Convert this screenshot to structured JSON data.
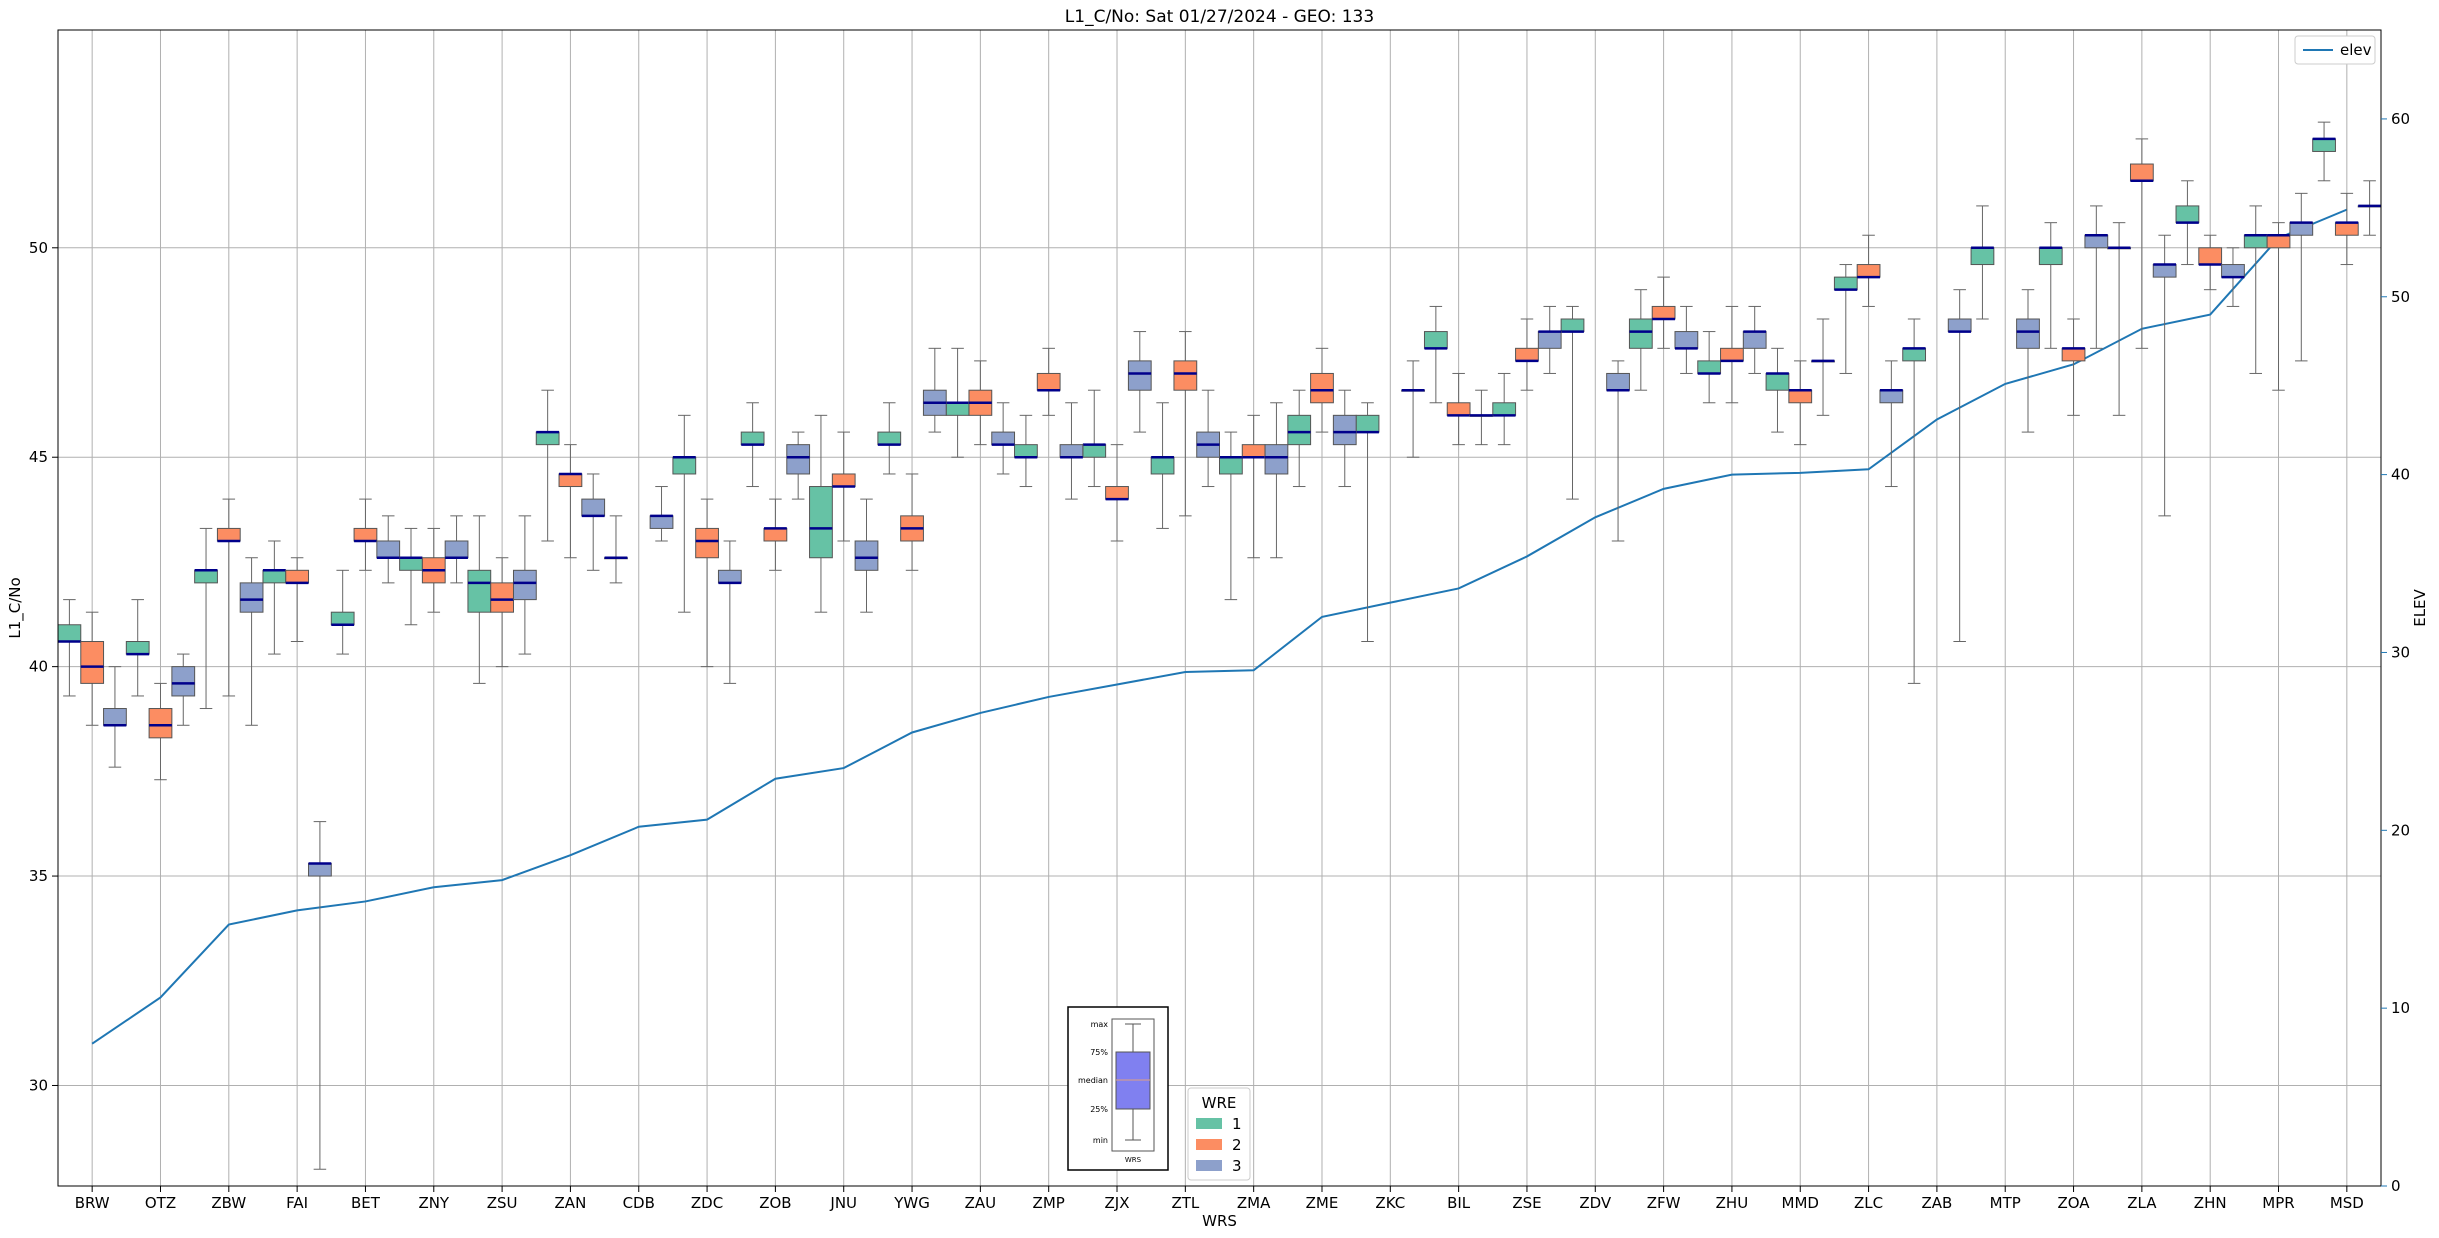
{
  "chart_data": {
    "type": "box",
    "title": "L1_C/No: Sat 01/27/2024 - GEO: 133",
    "xlabel": "WRS",
    "ylabel": "L1_C/No",
    "y2label": "ELEV",
    "ylim": [
      27.6,
      55.2
    ],
    "y2lim": [
      0,
      65
    ],
    "yticks": [
      30,
      35,
      40,
      45,
      50
    ],
    "y2ticks": [
      0,
      10,
      20,
      30,
      40,
      50,
      60
    ],
    "grid": true,
    "categories": [
      "BRW",
      "OTZ",
      "ZBW",
      "FAI",
      "BET",
      "ZNY",
      "ZSU",
      "ZAN",
      "CDB",
      "ZDC",
      "ZOB",
      "JNU",
      "YWG",
      "ZAU",
      "ZMP",
      "ZJX",
      "ZTL",
      "ZMA",
      "ZME",
      "ZKC",
      "BIL",
      "ZSE",
      "ZDV",
      "ZFW",
      "ZHU",
      "MMD",
      "ZLC",
      "ZAB",
      "MTP",
      "ZOA",
      "ZLA",
      "ZHN",
      "MPR",
      "MSD"
    ],
    "series": [
      {
        "name": "1",
        "color": "#66c2a5",
        "boxes": [
          {
            "min": 39.3,
            "q1": 40.6,
            "median": 40.6,
            "q3": 41.0,
            "max": 41.6
          },
          {
            "min": 39.3,
            "q1": 40.3,
            "median": 40.3,
            "q3": 40.6,
            "max": 41.6
          },
          {
            "min": 39.0,
            "q1": 42.0,
            "median": 42.3,
            "q3": 42.3,
            "max": 43.3
          },
          {
            "min": 40.3,
            "q1": 42.0,
            "median": 42.3,
            "q3": 42.3,
            "max": 43.0
          },
          {
            "min": 40.3,
            "q1": 41.0,
            "median": 41.0,
            "q3": 41.3,
            "max": 42.3
          },
          {
            "min": 41.0,
            "q1": 42.3,
            "median": 42.6,
            "q3": 42.6,
            "max": 43.3
          },
          {
            "min": 39.6,
            "q1": 41.3,
            "median": 42.0,
            "q3": 42.3,
            "max": 43.6
          },
          {
            "min": 43.0,
            "q1": 45.3,
            "median": 45.6,
            "q3": 45.6,
            "max": 46.6
          },
          {
            "min": 42.0,
            "q1": 42.6,
            "median": 42.6,
            "q3": 42.6,
            "max": 43.6
          },
          {
            "min": 41.3,
            "q1": 44.6,
            "median": 45.0,
            "q3": 45.0,
            "max": 46.0
          },
          {
            "min": 44.3,
            "q1": 45.3,
            "median": 45.3,
            "q3": 45.6,
            "max": 46.3
          },
          {
            "min": 41.3,
            "q1": 42.6,
            "median": 43.3,
            "q3": 44.3,
            "max": 46.0
          },
          {
            "min": 44.6,
            "q1": 45.3,
            "median": 45.3,
            "q3": 45.6,
            "max": 46.3
          },
          {
            "min": 45.0,
            "q1": 46.0,
            "median": 46.3,
            "q3": 46.3,
            "max": 47.6
          },
          {
            "min": 44.3,
            "q1": 45.0,
            "median": 45.0,
            "q3": 45.3,
            "max": 46.0
          },
          {
            "min": 44.3,
            "q1": 45.0,
            "median": 45.3,
            "q3": 45.3,
            "max": 46.6
          },
          {
            "min": 43.3,
            "q1": 44.6,
            "median": 45.0,
            "q3": 45.0,
            "max": 46.3
          },
          {
            "min": 41.6,
            "q1": 44.6,
            "median": 45.0,
            "q3": 45.0,
            "max": 45.6
          },
          {
            "min": 44.3,
            "q1": 45.3,
            "median": 45.6,
            "q3": 46.0,
            "max": 46.6
          },
          {
            "min": 40.6,
            "q1": 45.6,
            "median": 45.6,
            "q3": 46.0,
            "max": 46.3
          },
          {
            "min": 46.3,
            "q1": 47.6,
            "median": 47.6,
            "q3": 48.0,
            "max": 48.6
          },
          {
            "min": 45.3,
            "q1": 46.0,
            "median": 46.0,
            "q3": 46.3,
            "max": 47.0
          },
          {
            "min": 44.0,
            "q1": 48.0,
            "median": 48.0,
            "q3": 48.3,
            "max": 48.6
          },
          {
            "min": 46.6,
            "q1": 47.6,
            "median": 48.0,
            "q3": 48.3,
            "max": 49.0
          },
          {
            "min": 46.3,
            "q1": 47.0,
            "median": 47.0,
            "q3": 47.3,
            "max": 48.0
          },
          {
            "min": 45.6,
            "q1": 46.6,
            "median": 47.0,
            "q3": 47.0,
            "max": 47.6
          },
          {
            "min": 47.0,
            "q1": 49.0,
            "median": 49.0,
            "q3": 49.3,
            "max": 49.6
          },
          {
            "min": 39.6,
            "q1": 47.3,
            "median": 47.6,
            "q3": 47.6,
            "max": 48.3
          },
          {
            "min": 48.3,
            "q1": 49.6,
            "median": 50.0,
            "q3": 50.0,
            "max": 51.0
          },
          {
            "min": 47.6,
            "q1": 49.6,
            "median": 50.0,
            "q3": 50.0,
            "max": 50.6
          },
          {
            "min": 46.0,
            "q1": 50.0,
            "median": 50.0,
            "q3": 50.0,
            "max": 50.6
          },
          {
            "min": 49.6,
            "q1": 50.6,
            "median": 50.6,
            "q3": 51.0,
            "max": 51.6
          },
          {
            "min": 47.0,
            "q1": 50.0,
            "median": 50.3,
            "q3": 50.3,
            "max": 51.0
          },
          {
            "min": 51.6,
            "q1": 52.3,
            "median": 52.6,
            "q3": 52.6,
            "max": 53.0
          }
        ]
      },
      {
        "name": "2",
        "color": "#fc8d62",
        "boxes": [
          {
            "min": 38.6,
            "q1": 39.6,
            "median": 40.0,
            "q3": 40.6,
            "max": 41.3
          },
          {
            "min": 37.3,
            "q1": 38.3,
            "median": 38.6,
            "q3": 39.0,
            "max": 39.6
          },
          {
            "min": 39.3,
            "q1": 43.0,
            "median": 43.0,
            "q3": 43.3,
            "max": 44.0
          },
          {
            "min": 40.6,
            "q1": 42.0,
            "median": 42.0,
            "q3": 42.3,
            "max": 42.6
          },
          {
            "min": 42.3,
            "q1": 43.0,
            "median": 43.0,
            "q3": 43.3,
            "max": 44.0
          },
          {
            "min": 41.3,
            "q1": 42.0,
            "median": 42.3,
            "q3": 42.6,
            "max": 43.3
          },
          {
            "min": 40.0,
            "q1": 41.3,
            "median": 41.6,
            "q3": 42.0,
            "max": 42.6
          },
          {
            "min": 42.6,
            "q1": 44.3,
            "median": 44.6,
            "q3": 44.6,
            "max": 45.3
          },
          null,
          {
            "min": 40.0,
            "q1": 42.6,
            "median": 43.0,
            "q3": 43.3,
            "max": 44.0
          },
          {
            "min": 42.3,
            "q1": 43.0,
            "median": 43.3,
            "q3": 43.3,
            "max": 44.0
          },
          {
            "min": 43.0,
            "q1": 44.3,
            "median": 44.3,
            "q3": 44.6,
            "max": 45.6
          },
          {
            "min": 42.3,
            "q1": 43.0,
            "median": 43.3,
            "q3": 43.6,
            "max": 44.6
          },
          {
            "min": 45.3,
            "q1": 46.0,
            "median": 46.3,
            "q3": 46.6,
            "max": 47.3
          },
          {
            "min": 46.0,
            "q1": 46.6,
            "median": 46.6,
            "q3": 47.0,
            "max": 47.6
          },
          {
            "min": 43.0,
            "q1": 44.0,
            "median": 44.0,
            "q3": 44.3,
            "max": 45.3
          },
          {
            "min": 43.6,
            "q1": 46.6,
            "median": 47.0,
            "q3": 47.3,
            "max": 48.0
          },
          {
            "min": 42.6,
            "q1": 45.0,
            "median": 45.0,
            "q3": 45.3,
            "max": 46.0
          },
          {
            "min": 45.6,
            "q1": 46.3,
            "median": 46.6,
            "q3": 47.0,
            "max": 47.6
          },
          null,
          {
            "min": 45.3,
            "q1": 46.0,
            "median": 46.0,
            "q3": 46.3,
            "max": 47.0
          },
          {
            "min": 46.6,
            "q1": 47.3,
            "median": 47.3,
            "q3": 47.6,
            "max": 48.3
          },
          null,
          {
            "min": 47.6,
            "q1": 48.3,
            "median": 48.3,
            "q3": 48.6,
            "max": 49.3
          },
          {
            "min": 46.3,
            "q1": 47.3,
            "median": 47.3,
            "q3": 47.6,
            "max": 48.6
          },
          {
            "min": 45.3,
            "q1": 46.3,
            "median": 46.6,
            "q3": 46.6,
            "max": 47.3
          },
          {
            "min": 48.6,
            "q1": 49.3,
            "median": 49.3,
            "q3": 49.6,
            "max": 50.3
          },
          null,
          null,
          {
            "min": 46.0,
            "q1": 47.3,
            "median": 47.6,
            "q3": 47.6,
            "max": 48.3
          },
          {
            "min": 47.6,
            "q1": 51.6,
            "median": 51.6,
            "q3": 52.0,
            "max": 52.6
          },
          {
            "min": 49.0,
            "q1": 49.6,
            "median": 49.6,
            "q3": 50.0,
            "max": 50.3
          },
          {
            "min": 46.6,
            "q1": 50.0,
            "median": 50.3,
            "q3": 50.3,
            "max": 50.6
          },
          {
            "min": 49.6,
            "q1": 50.3,
            "median": 50.6,
            "q3": 50.6,
            "max": 51.3
          }
        ]
      },
      {
        "name": "3",
        "color": "#8da0cb",
        "boxes": [
          {
            "min": 37.6,
            "q1": 38.6,
            "median": 38.6,
            "q3": 39.0,
            "max": 40.0
          },
          {
            "min": 38.6,
            "q1": 39.3,
            "median": 39.6,
            "q3": 40.0,
            "max": 40.3
          },
          {
            "min": 38.6,
            "q1": 41.3,
            "median": 41.6,
            "q3": 42.0,
            "max": 42.6
          },
          {
            "min": 28.0,
            "q1": 35.0,
            "median": 35.3,
            "q3": 35.3,
            "max": 36.3
          },
          {
            "min": 42.0,
            "q1": 42.6,
            "median": 42.6,
            "q3": 43.0,
            "max": 43.6
          },
          {
            "min": 42.0,
            "q1": 42.6,
            "median": 42.6,
            "q3": 43.0,
            "max": 43.6
          },
          {
            "min": 40.3,
            "q1": 41.6,
            "median": 42.0,
            "q3": 42.3,
            "max": 43.6
          },
          {
            "min": 42.3,
            "q1": 43.6,
            "median": 43.6,
            "q3": 44.0,
            "max": 44.6
          },
          {
            "min": 43.0,
            "q1": 43.3,
            "median": 43.6,
            "q3": 43.6,
            "max": 44.3
          },
          {
            "min": 39.6,
            "q1": 42.0,
            "median": 42.0,
            "q3": 42.3,
            "max": 43.0
          },
          {
            "min": 44.0,
            "q1": 44.6,
            "median": 45.0,
            "q3": 45.3,
            "max": 45.6
          },
          {
            "min": 41.3,
            "q1": 42.3,
            "median": 42.6,
            "q3": 43.0,
            "max": 44.0
          },
          {
            "min": 45.6,
            "q1": 46.0,
            "median": 46.3,
            "q3": 46.6,
            "max": 47.6
          },
          {
            "min": 44.6,
            "q1": 45.3,
            "median": 45.3,
            "q3": 45.6,
            "max": 46.3
          },
          {
            "min": 44.0,
            "q1": 45.0,
            "median": 45.0,
            "q3": 45.3,
            "max": 46.3
          },
          {
            "min": 45.6,
            "q1": 46.6,
            "median": 47.0,
            "q3": 47.3,
            "max": 48.0
          },
          {
            "min": 44.3,
            "q1": 45.0,
            "median": 45.3,
            "q3": 45.6,
            "max": 46.6
          },
          {
            "min": 42.6,
            "q1": 44.6,
            "median": 45.0,
            "q3": 45.3,
            "max": 46.3
          },
          {
            "min": 44.3,
            "q1": 45.3,
            "median": 45.6,
            "q3": 46.0,
            "max": 46.6
          },
          {
            "min": 45.0,
            "q1": 46.6,
            "median": 46.6,
            "q3": 46.6,
            "max": 47.3
          },
          {
            "min": 45.3,
            "q1": 46.0,
            "median": 46.0,
            "q3": 46.0,
            "max": 46.6
          },
          {
            "min": 47.0,
            "q1": 47.6,
            "median": 48.0,
            "q3": 48.0,
            "max": 48.6
          },
          {
            "min": 43.0,
            "q1": 46.6,
            "median": 46.6,
            "q3": 47.0,
            "max": 47.3
          },
          {
            "min": 47.0,
            "q1": 47.6,
            "median": 47.6,
            "q3": 48.0,
            "max": 48.6
          },
          {
            "min": 47.0,
            "q1": 47.6,
            "median": 48.0,
            "q3": 48.0,
            "max": 48.6
          },
          {
            "min": 46.0,
            "q1": 47.3,
            "median": 47.3,
            "q3": 47.3,
            "max": 48.3
          },
          {
            "min": 44.3,
            "q1": 46.3,
            "median": 46.6,
            "q3": 46.6,
            "max": 47.3
          },
          {
            "min": 40.6,
            "q1": 48.0,
            "median": 48.0,
            "q3": 48.3,
            "max": 49.0
          },
          {
            "min": 45.6,
            "q1": 47.6,
            "median": 48.0,
            "q3": 48.3,
            "max": 49.0
          },
          {
            "min": 47.6,
            "q1": 50.0,
            "median": 50.3,
            "q3": 50.3,
            "max": 51.0
          },
          {
            "min": 43.6,
            "q1": 49.3,
            "median": 49.6,
            "q3": 49.6,
            "max": 50.3
          },
          {
            "min": 48.6,
            "q1": 49.3,
            "median": 49.3,
            "q3": 49.6,
            "max": 50.0
          },
          {
            "min": 47.3,
            "q1": 50.3,
            "median": 50.6,
            "q3": 50.6,
            "max": 51.3
          },
          {
            "min": 50.3,
            "q1": 51.0,
            "median": 51.0,
            "q3": 51.0,
            "max": 51.6
          }
        ]
      }
    ],
    "elev_line": {
      "name": "elev",
      "color": "#1f77b4",
      "values": [
        8.0,
        10.6,
        14.7,
        15.5,
        16.0,
        16.8,
        17.2,
        18.6,
        20.2,
        20.6,
        22.9,
        23.5,
        25.5,
        26.6,
        27.5,
        28.2,
        28.9,
        29.0,
        32.0,
        32.8,
        33.6,
        35.4,
        37.6,
        39.2,
        40.0,
        40.1,
        40.3,
        43.1,
        45.1,
        46.2,
        48.2,
        49.0,
        53.3,
        54.9
      ]
    },
    "legend": {
      "title": "WRE",
      "entries": [
        "1",
        "2",
        "3"
      ],
      "position": "bottom-center",
      "line_entry": "elev",
      "line_position": "top-right"
    },
    "key_box": {
      "labels": [
        "max",
        "75%",
        "median",
        "25%",
        "min"
      ],
      "xlabel": "WRS",
      "color": "#8080f0"
    }
  }
}
